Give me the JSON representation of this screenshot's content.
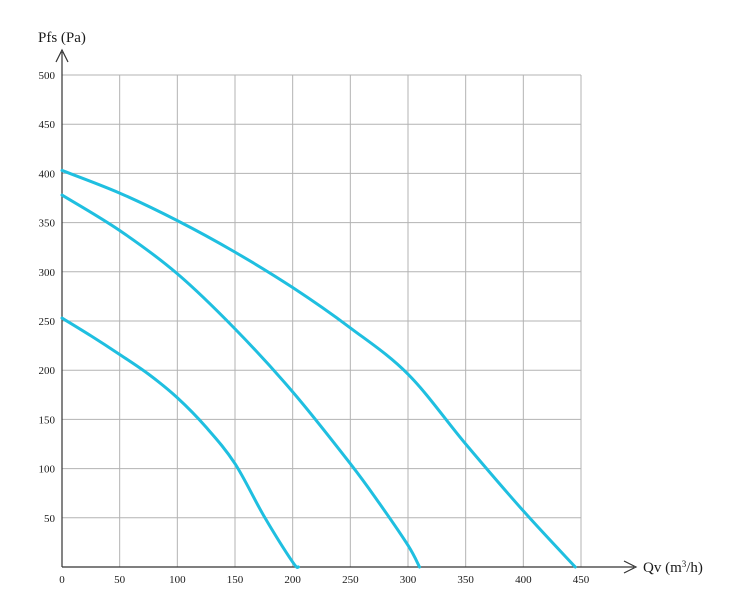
{
  "chart_data": {
    "type": "line",
    "title": "",
    "ylabel": "Pfs (Pa)",
    "xlabel_prefix": "Qv (m",
    "xlabel_sup": "3",
    "xlabel_suffix": "/h)",
    "xlim": [
      0,
      450
    ],
    "ylim": [
      0,
      500
    ],
    "xticks": [
      0,
      50,
      100,
      150,
      200,
      250,
      300,
      350,
      400,
      450
    ],
    "yticks": [
      50,
      100,
      150,
      200,
      250,
      300,
      350,
      400,
      450,
      500
    ],
    "grid": true,
    "legend": "none",
    "line_color": "#1fbfe0",
    "series": [
      {
        "x": [
          0,
          25,
          50,
          75,
          100,
          125,
          150,
          175,
          200,
          205
        ],
        "y": [
          253,
          235,
          216,
          196,
          172,
          142,
          105,
          52,
          5,
          0
        ]
      },
      {
        "x": [
          0,
          50,
          100,
          150,
          200,
          250,
          275,
          300,
          310
        ],
        "y": [
          378,
          342,
          298,
          242,
          178,
          105,
          65,
          22,
          0
        ]
      },
      {
        "x": [
          0,
          50,
          100,
          150,
          200,
          250,
          300,
          350,
          400,
          445
        ],
        "y": [
          403,
          380,
          352,
          320,
          284,
          243,
          196,
          125,
          57,
          0
        ]
      }
    ]
  }
}
